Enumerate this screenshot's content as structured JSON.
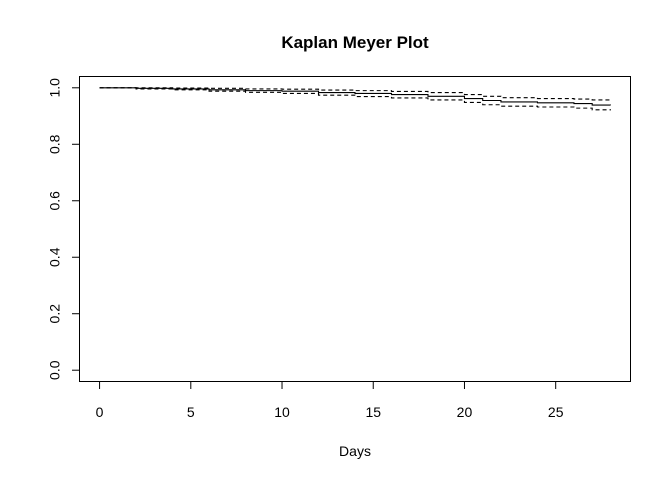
{
  "chart_data": {
    "type": "line",
    "title": "Kaplan Meyer Plot",
    "xlabel": "Days",
    "ylabel": "",
    "xlim": [
      -1.1,
      29.1
    ],
    "ylim": [
      -0.04,
      1.04
    ],
    "xticks": [
      "0",
      "5",
      "10",
      "15",
      "20",
      "25"
    ],
    "yticks": [
      "0.0",
      "0.2",
      "0.4",
      "0.6",
      "0.8",
      "1.0"
    ],
    "grid": false,
    "legend": "none",
    "series": [
      {
        "role": "estimate",
        "style": "solid",
        "color": "#000000",
        "x": [
          0,
          2,
          4,
          6,
          8,
          10,
          12,
          14,
          16,
          18,
          20,
          21,
          22,
          24,
          26,
          27,
          28
        ],
        "y": [
          1.0,
          0.998,
          0.996,
          0.993,
          0.99,
          0.988,
          0.983,
          0.98,
          0.976,
          0.97,
          0.962,
          0.955,
          0.95,
          0.947,
          0.944,
          0.939,
          0.938
        ]
      },
      {
        "role": "upper",
        "style": "dashed",
        "color": "#000000",
        "x": [
          0,
          2,
          4,
          6,
          8,
          10,
          12,
          14,
          16,
          18,
          20,
          21,
          22,
          24,
          26,
          27,
          28
        ],
        "y": [
          1.0,
          1.0,
          0.999,
          0.998,
          0.996,
          0.995,
          0.992,
          0.99,
          0.987,
          0.983,
          0.976,
          0.97,
          0.965,
          0.962,
          0.96,
          0.957,
          0.955
        ]
      },
      {
        "role": "lower",
        "style": "dashed",
        "color": "#000000",
        "x": [
          0,
          2,
          4,
          6,
          8,
          10,
          12,
          14,
          16,
          18,
          20,
          21,
          22,
          24,
          26,
          27,
          28
        ],
        "y": [
          1.0,
          0.996,
          0.993,
          0.988,
          0.984,
          0.98,
          0.974,
          0.969,
          0.964,
          0.957,
          0.948,
          0.94,
          0.935,
          0.932,
          0.928,
          0.922,
          0.92
        ]
      }
    ]
  }
}
